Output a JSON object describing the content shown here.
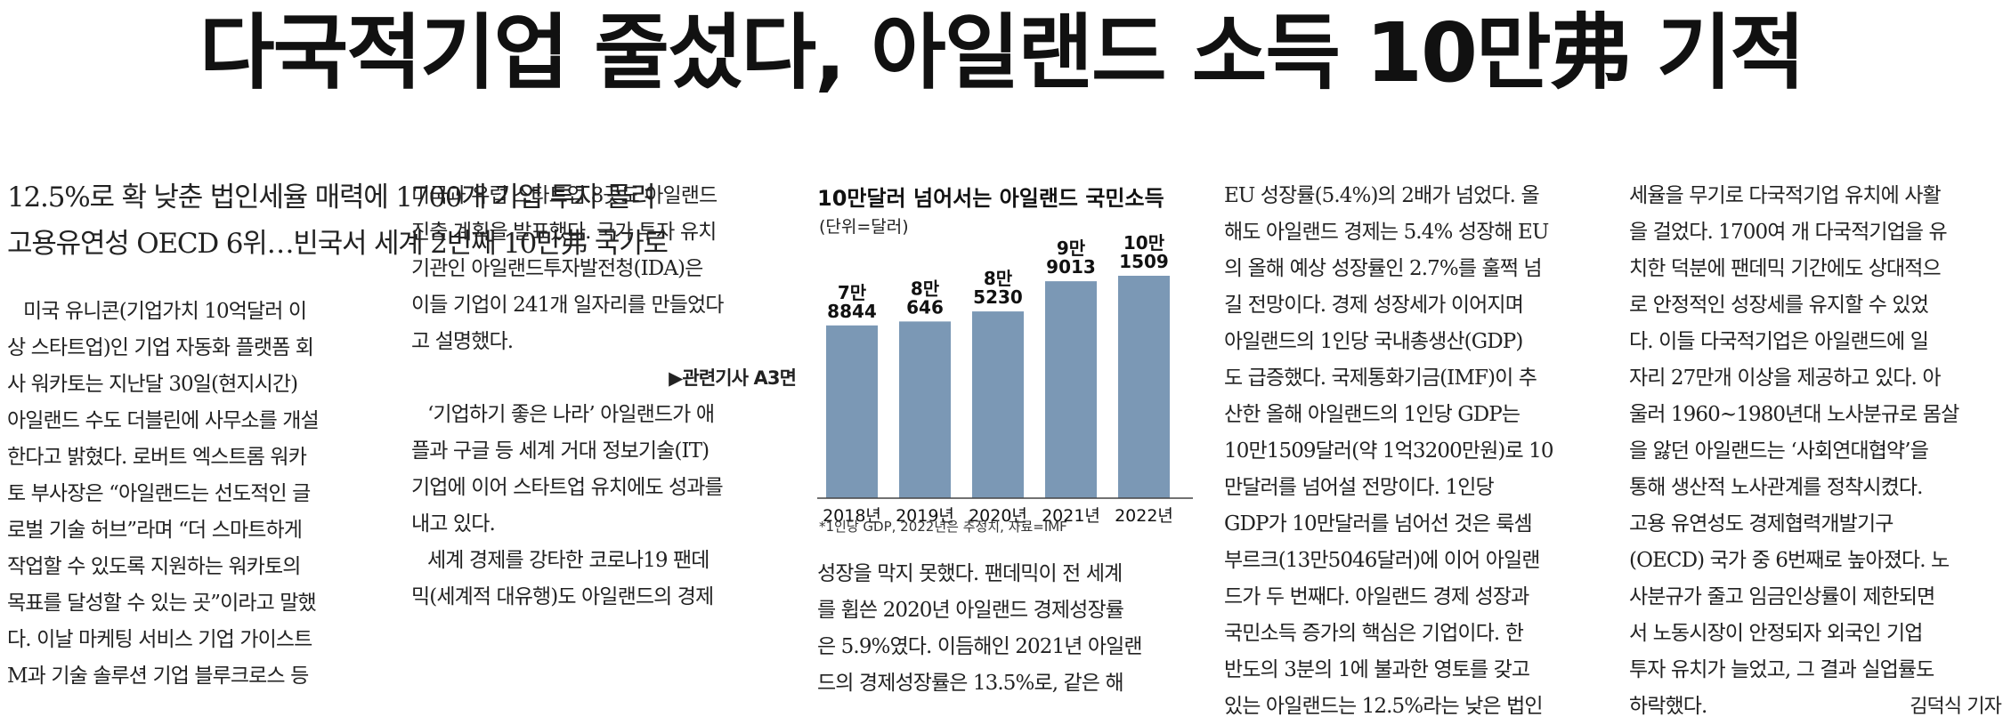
{
  "headline": "다국적기업 줄섰다, 아일랜드 소득 10만弗 기적",
  "subheadings": [
    "12.5%로 확 낮춘 법인세율 매력에 1700개 기업 투자 몰려",
    "고용유연성 OECD 6위…빈국서 세계 2번째 10만弗 국가로"
  ],
  "col1": [
    "미국 유니콘(기업가치 10억달러 이",
    "상 스타트업)인 기업 자동화 플랫폼 회",
    "사 워카토는 지난달 30일(현지시간)",
    "아일랜드 수도 더블린에 사무소를 개설",
    "한다고 밝혔다. 로버트 엑스트롬 워카",
    "토 부사장은 “아일랜드는 선도적인 글",
    "로벌 기술 허브”라며 “더 스마트하게",
    "작업할 수 있도록 지원하는 워카토의",
    "목표를 달성할 수 있는 곳”이라고 말했",
    "다. 이날 마케팅 서비스 기업 가이스트",
    "M과 기술 솔루션 기업 블루크로스 등"
  ],
  "col2": [
    "미국과 유럽 스타트업 8곳도 아일랜드",
    "진출 계획을 발표했다. 국가 투자 유치",
    "기관인 아일랜드투자발전청(IDA)은",
    "이들 기업이 241개 일자리를 만들었다",
    "고 설명했다."
  ],
  "col2_related": "▶관련기사 A3면",
  "col2_b": [
    "‘기업하기 좋은 나라’ 아일랜드가 애",
    "플과 구글 등 세계 거대 정보기술(IT)",
    "기업에 이어 스타트업 유치에도 성과를",
    "내고 있다.",
    "세계 경제를 강타한 코로나19 팬데",
    "믹(세계적 대유행)도 아일랜드의 경제"
  ],
  "col3": [
    "성장을 막지 못했다. 팬데믹이 전 세계",
    "를 휩쓴 2020년 아일랜드 경제성장률",
    "은 5.9%였다. 이듬해인 2021년 아일랜",
    "드의 경제성장률은 13.5%로, 같은 해"
  ],
  "col4": [
    "EU 성장률(5.4%)의 2배가 넘었다. 올",
    "해도 아일랜드 경제는 5.4% 성장해 EU",
    "의 올해 예상 성장률인 2.7%를 훌쩍 넘",
    "길 전망이다. 경제 성장세가 이어지며",
    "아일랜드의 1인당 국내총생산(GDP)",
    "도 급증했다. 국제통화기금(IMF)이 추",
    "산한 올해 아일랜드의 1인당 GDP는",
    "10만1509달러(약 1억3200만원)로 10",
    "만달러를 넘어설 전망이다. 1인당",
    "GDP가 10만달러를 넘어선 것은 룩셈",
    "부르크(13만5046달러)에 이어 아일랜",
    "드가 두 번째다. 아일랜드 경제 성장과",
    "국민소득 증가의 핵심은 기업이다. 한",
    "반도의 3분의 1에 불과한 영토를 갖고",
    "있는 아일랜드는 12.5%라는 낮은 법인"
  ],
  "col5": [
    "세율을 무기로 다국적기업 유치에 사활",
    "을 걸었다. 1700여 개 다국적기업을 유",
    "치한 덕분에 팬데믹 기간에도 상대적으",
    "로 안정적인 성장세를 유지할 수 있었",
    "다. 이들 다국적기업은 아일랜드에 일",
    "자리 27만개 이상을 제공하고 있다. 아",
    "울러 1960~1980년대 노사분규로 몸살",
    "을 앓던 아일랜드는 ‘사회연대협약’을",
    "통해 생산적 노사관계를 정착시켰다.",
    "고용 유연성도 경제협력개발기구",
    "(OECD) 국가 중 6번째로 높아졌다. 노",
    "사분규가 줄고 임금인상률이 제한되면",
    "서 노동시장이 안정되자 외국인 기업",
    "투자 유치가 늘었고, 그 결과 실업률도",
    "하락했다."
  ],
  "byline": "김덕식 기자",
  "chart_data": {
    "type": "bar",
    "title": "10만달러 넘어서는 아일랜드 국민소득",
    "unit": "(단위=달러)",
    "categories": [
      "2018년",
      "2019년",
      "2020년",
      "2021년",
      "2022년"
    ],
    "values": [
      78844,
      80646,
      85230,
      99013,
      101509
    ],
    "value_labels": [
      [
        "7만",
        "8844"
      ],
      [
        "8만",
        "646"
      ],
      [
        "8만",
        "5230"
      ],
      [
        "9만",
        "9013"
      ],
      [
        "10만",
        "1509"
      ]
    ],
    "footnote": "*1인당 GDP, 2022년은 추정치, 자료=IMF",
    "bar_color": "#7b98b5"
  }
}
